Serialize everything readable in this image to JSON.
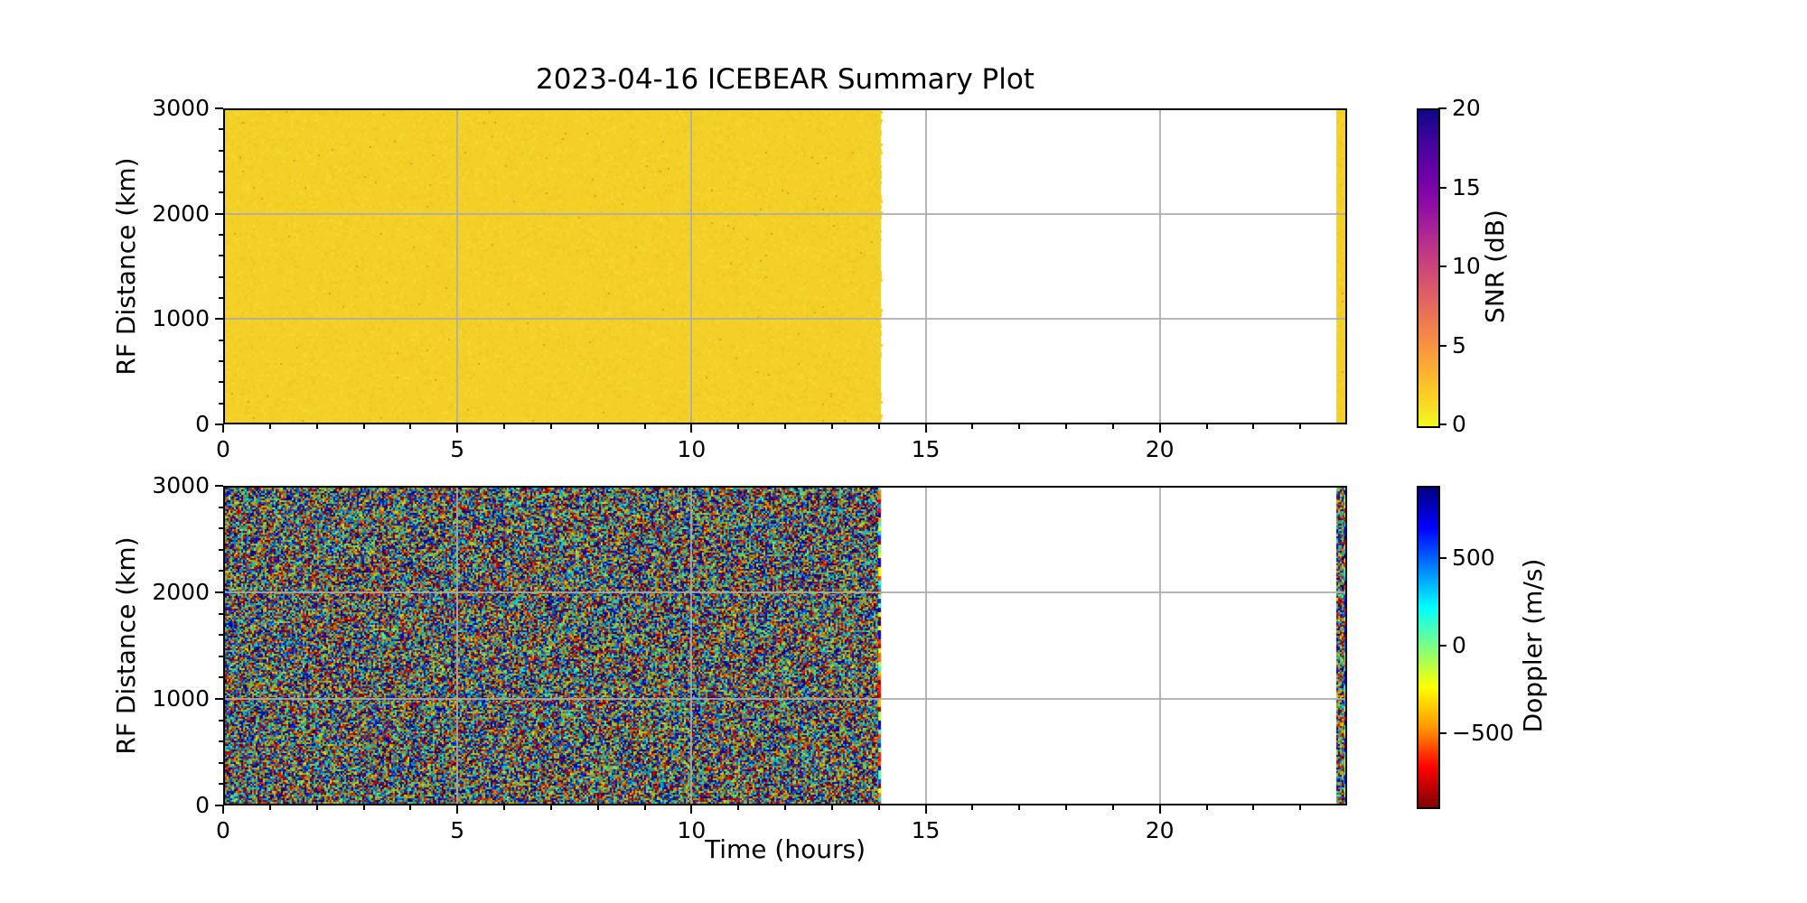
{
  "figure": {
    "title": "2023-04-16 ICEBEAR Summary Plot",
    "background": "#ffffff"
  },
  "colors": {
    "spine": "#000000",
    "grid": "#aaaaaa",
    "text": "#000000",
    "snr_fill_yellow": "#f2d028",
    "snr_fill_speck": "#e89b25",
    "plasma_r_bottom_to_top": [
      "#f0f921",
      "#fcce25",
      "#fca636",
      "#f2844b",
      "#e16462",
      "#cc4778",
      "#b12a90",
      "#8f0da4",
      "#6a00a8",
      "#41049d",
      "#0d0887"
    ],
    "jet_r_bottom_to_top": [
      "#800000",
      "#ff0000",
      "#ff9800",
      "#ffff00",
      "#80ff80",
      "#00ffff",
      "#0080ff",
      "#0000ff",
      "#000080"
    ]
  },
  "chart_data": [
    {
      "type": "heatmap",
      "name": "snr_panel",
      "title": "2023-04-16 ICEBEAR Summary Plot",
      "xlabel": "",
      "ylabel": "RF Distance (km)",
      "xlim": [
        0,
        24
      ],
      "ylim": [
        0,
        3000
      ],
      "xticks": [
        0,
        5,
        10,
        15,
        20
      ],
      "xtick_labels": [
        "0",
        "5",
        "10",
        "15",
        "20"
      ],
      "x_minor_step_hours": 1,
      "yticks": [
        0,
        1000,
        2000,
        3000
      ],
      "ytick_labels": [
        "0",
        "1000",
        "2000",
        "3000"
      ],
      "y_minor_step_km": 200,
      "grid": true,
      "grid_x_hours": [
        5,
        10,
        15,
        20
      ],
      "grid_y_km": [
        1000,
        2000
      ],
      "colormap": "plasma_r",
      "colorbar": {
        "label": "SNR (dB)",
        "vmin": 0,
        "vmax": 20,
        "ticks": [
          0,
          5,
          10,
          15,
          20
        ],
        "tick_labels": [
          "0",
          "5",
          "10",
          "15",
          "20"
        ],
        "position": "right"
      },
      "data_segments": [
        {
          "t_start_hours": 0,
          "t_end_hours": 14.05,
          "km_start": 0,
          "km_end": 3000,
          "value": "uniform SNR ≈ 0 dB (solid yellow fill)"
        },
        {
          "t_start_hours": 23.77,
          "t_end_hours": 24.0,
          "km_start": 0,
          "km_end": 3000,
          "value": "uniform SNR ≈ 0 dB (solid yellow strip)"
        }
      ],
      "no_data_intervals_hours": [
        [
          14.05,
          23.77
        ]
      ]
    },
    {
      "type": "heatmap",
      "name": "doppler_panel",
      "xlabel": "Time (hours)",
      "ylabel": "RF Distance (km)",
      "xlim": [
        0,
        24
      ],
      "ylim": [
        0,
        3000
      ],
      "xticks": [
        0,
        5,
        10,
        15,
        20
      ],
      "xtick_labels": [
        "0",
        "5",
        "10",
        "15",
        "20"
      ],
      "x_minor_step_hours": 1,
      "yticks": [
        0,
        1000,
        2000,
        3000
      ],
      "ytick_labels": [
        "0",
        "1000",
        "2000",
        "3000"
      ],
      "y_minor_step_km": 200,
      "grid": true,
      "grid_x_hours": [
        5,
        10,
        15,
        20
      ],
      "grid_y_km": [
        1000,
        2000
      ],
      "colormap": "jet_r",
      "colorbar": {
        "label": "Doppler (m/s)",
        "vmin": -910,
        "vmax": 910,
        "ticks": [
          500,
          0,
          -500
        ],
        "tick_labels": [
          "500",
          "0",
          "−500"
        ],
        "position": "right"
      },
      "data_segments": [
        {
          "t_start_hours": 0,
          "t_end_hours": 14.05,
          "km_start": 0,
          "km_end": 3000,
          "value": "random Doppler noise spanning full ±900 m/s range (speckled multicolor)",
          "edge": "vivid saturated random column at right edge"
        },
        {
          "t_start_hours": 23.77,
          "t_end_hours": 24.0,
          "km_start": 0,
          "km_end": 3000,
          "value": "random Doppler noise strip, vivid right edge"
        }
      ],
      "no_data_intervals_hours": [
        [
          14.05,
          23.77
        ]
      ]
    }
  ]
}
